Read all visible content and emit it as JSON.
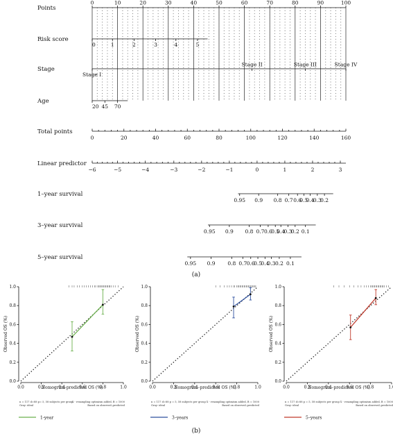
{
  "figure": {
    "panel_a_caption": "(a)",
    "panel_b_caption": "(b)"
  },
  "chart_data": [
    {
      "type": "nomogram",
      "points_scale": {
        "label": "Points",
        "min": 0,
        "max": 100,
        "ticks": [
          0,
          10,
          20,
          30,
          40,
          50,
          60,
          70,
          80,
          90,
          100
        ]
      },
      "variables": [
        {
          "label": "Risk score",
          "ticks": [
            {
              "label": "0",
              "points": 0
            },
            {
              "label": "1",
              "points": 8
            },
            {
              "label": "2",
              "points": 16.5
            },
            {
              "label": "3",
              "points": 25
            },
            {
              "label": "4",
              "points": 33
            },
            {
              "label": "5",
              "points": 41.5
            }
          ],
          "line_end_points": 45.5
        },
        {
          "label": "Stage",
          "ticks": [
            {
              "label": "Stage I",
              "points": 0
            },
            {
              "label": "Stage II",
              "points": 63
            },
            {
              "label": "Stage III",
              "points": 84
            },
            {
              "label": "Stage IV",
              "points": 100
            }
          ]
        },
        {
          "label": "Age",
          "ticks": [
            {
              "label": "20",
              "points": 0
            },
            {
              "label": "45",
              "points": 5
            },
            {
              "label": "70",
              "points": 10
            }
          ],
          "line_end_points": 14
        }
      ],
      "total_points": {
        "label": "Total points",
        "min": 0,
        "max": 160,
        "ticks": [
          0,
          20,
          40,
          60,
          80,
          100,
          120,
          140,
          160
        ]
      },
      "linear_predictor": {
        "label": "Linear predictor",
        "ticks": [
          {
            "label": "−6",
            "total": 0
          },
          {
            "label": "−5",
            "total": 16
          },
          {
            "label": "−4",
            "total": 33.5
          },
          {
            "label": "−3",
            "total": 51.5
          },
          {
            "label": "−2",
            "total": 69
          },
          {
            "label": "−1",
            "total": 86.5
          },
          {
            "label": "0",
            "total": 104
          },
          {
            "label": "1",
            "total": 121.5
          },
          {
            "label": "2",
            "total": 139
          },
          {
            "label": "3",
            "total": 156.5
          }
        ]
      },
      "survival_axes": [
        {
          "label": "1–year survival",
          "ticks": [
            {
              "label": "0.95",
              "total": 93
            },
            {
              "label": "0.9",
              "total": 105
            },
            {
              "label": "0.8",
              "total": 117
            },
            {
              "label": "0.7",
              "total": 124
            },
            {
              "label": "0.6",
              "total": 129.5
            },
            {
              "label": "0.5",
              "total": 133.5
            },
            {
              "label": "0.4",
              "total": 137.5
            },
            {
              "label": "0.3",
              "total": 142
            },
            {
              "label": "0.2",
              "total": 146.5
            }
          ],
          "range_total": [
            92,
            152
          ]
        },
        {
          "label": "3–year survival",
          "ticks": [
            {
              "label": "0.95",
              "total": 74
            },
            {
              "label": "0.9",
              "total": 86.5
            },
            {
              "label": "0.8",
              "total": 99
            },
            {
              "label": "0.7",
              "total": 106
            },
            {
              "label": "0.6",
              "total": 111
            },
            {
              "label": "0.5",
              "total": 115.5
            },
            {
              "label": "0.4",
              "total": 119
            },
            {
              "label": "0.3",
              "total": 123.5
            },
            {
              "label": "0.2",
              "total": 128
            },
            {
              "label": "0.1",
              "total": 134.5
            }
          ],
          "range_total": [
            73,
            141
          ]
        },
        {
          "label": "5–year survival",
          "ticks": [
            {
              "label": "0.95",
              "total": 62
            },
            {
              "label": "0.9",
              "total": 75
            },
            {
              "label": "0.8",
              "total": 88
            },
            {
              "label": "0.7",
              "total": 95
            },
            {
              "label": "0.6",
              "total": 100
            },
            {
              "label": "0.5",
              "total": 104.5
            },
            {
              "label": "0.4",
              "total": 109
            },
            {
              "label": "0.3",
              "total": 113
            },
            {
              "label": "0.2",
              "total": 118
            },
            {
              "label": "0.1",
              "total": 125
            }
          ],
          "range_total": [
            60,
            132
          ]
        }
      ]
    },
    {
      "type": "line",
      "panel": "calibration",
      "xlabel": "Nomogram-predicted OS (%)",
      "ylabel": "Observed OS (%)",
      "xlim": [
        0,
        1
      ],
      "ylim": [
        0,
        1
      ],
      "ticks": [
        "0.0",
        "0.2",
        "0.4",
        "0.6",
        "0.8",
        "1.0"
      ],
      "color": "#6ab04c",
      "series": [
        {
          "name": "1-year",
          "x": [
            0.5,
            0.8
          ],
          "y": [
            0.47,
            0.81
          ],
          "err_low": [
            0.32,
            0.71
          ],
          "err_high": [
            0.63,
            0.97
          ]
        }
      ],
      "rug": [
        0.47,
        0.5,
        0.52,
        0.55,
        0.57,
        0.6,
        0.62,
        0.64,
        0.66,
        0.68,
        0.7,
        0.72,
        0.73,
        0.75,
        0.76,
        0.77,
        0.78,
        0.79,
        0.8,
        0.81,
        0.82,
        0.83,
        0.84,
        0.85,
        0.86,
        0.87,
        0.88,
        0.9,
        0.92,
        0.95
      ],
      "footnotes": [
        "n = 117 d=88 p= 5, 58 subjects per group",
        "Gray: ideal",
        "X - resampling optimism added, B = 1000",
        "Based on observed–predicted"
      ]
    },
    {
      "type": "line",
      "panel": "calibration",
      "xlabel": "Nomogram–predicted OS (%)",
      "ylabel": "Observed OS (%)",
      "xlim": [
        0,
        1
      ],
      "ylim": [
        0,
        1
      ],
      "ticks": [
        "0.0",
        "0.2",
        "0.4",
        "0.6",
        "0.8",
        "1.0"
      ],
      "color": "#2c4f9e",
      "series": [
        {
          "name": "3–years",
          "x": [
            0.77,
            0.93
          ],
          "y": [
            0.79,
            0.92
          ],
          "err_low": [
            0.67,
            0.86
          ],
          "err_high": [
            0.89,
            0.99
          ]
        }
      ],
      "rug": [
        0.6,
        0.64,
        0.68,
        0.71,
        0.73,
        0.75,
        0.77,
        0.78,
        0.8,
        0.81,
        0.82,
        0.83,
        0.84,
        0.85,
        0.86,
        0.87,
        0.88,
        0.89,
        0.9,
        0.91,
        0.92,
        0.93,
        0.94,
        0.95,
        0.96,
        0.97,
        0.98
      ],
      "footnotes": [
        "n = 117 d=88 p = 5, 58 subjects per group",
        "Gray: ideal",
        "X - resampling optimism added, B = 1000",
        "Based on observed–predicted"
      ]
    },
    {
      "type": "line",
      "panel": "calibration",
      "xlabel": "Nomogram–predicted OS (%)",
      "ylabel": "Observed OS (%)",
      "xlim": [
        0,
        1
      ],
      "ylim": [
        0,
        1
      ],
      "ticks": [
        "0.0",
        "0.2",
        "0.4",
        "0.6",
        "0.8",
        "1.0"
      ],
      "color": "#c0392b",
      "series": [
        {
          "name": "5–years",
          "x": [
            0.61,
            0.85
          ],
          "y": [
            0.57,
            0.88
          ],
          "err_low": [
            0.44,
            0.81
          ],
          "err_high": [
            0.7,
            0.97
          ]
        }
      ],
      "rug": [
        0.45,
        0.5,
        0.55,
        0.6,
        0.64,
        0.68,
        0.71,
        0.74,
        0.76,
        0.78,
        0.8,
        0.81,
        0.82,
        0.83,
        0.84,
        0.85,
        0.86,
        0.87,
        0.88,
        0.89,
        0.9,
        0.91,
        0.92,
        0.93,
        0.95,
        0.97
      ],
      "footnotes": [
        "n = 117 d=88 p = 5, 58 subjects per group",
        "Gray: ideal",
        "X - resampling optimism added, B = 1000",
        "Based on observed–predicted"
      ]
    }
  ]
}
